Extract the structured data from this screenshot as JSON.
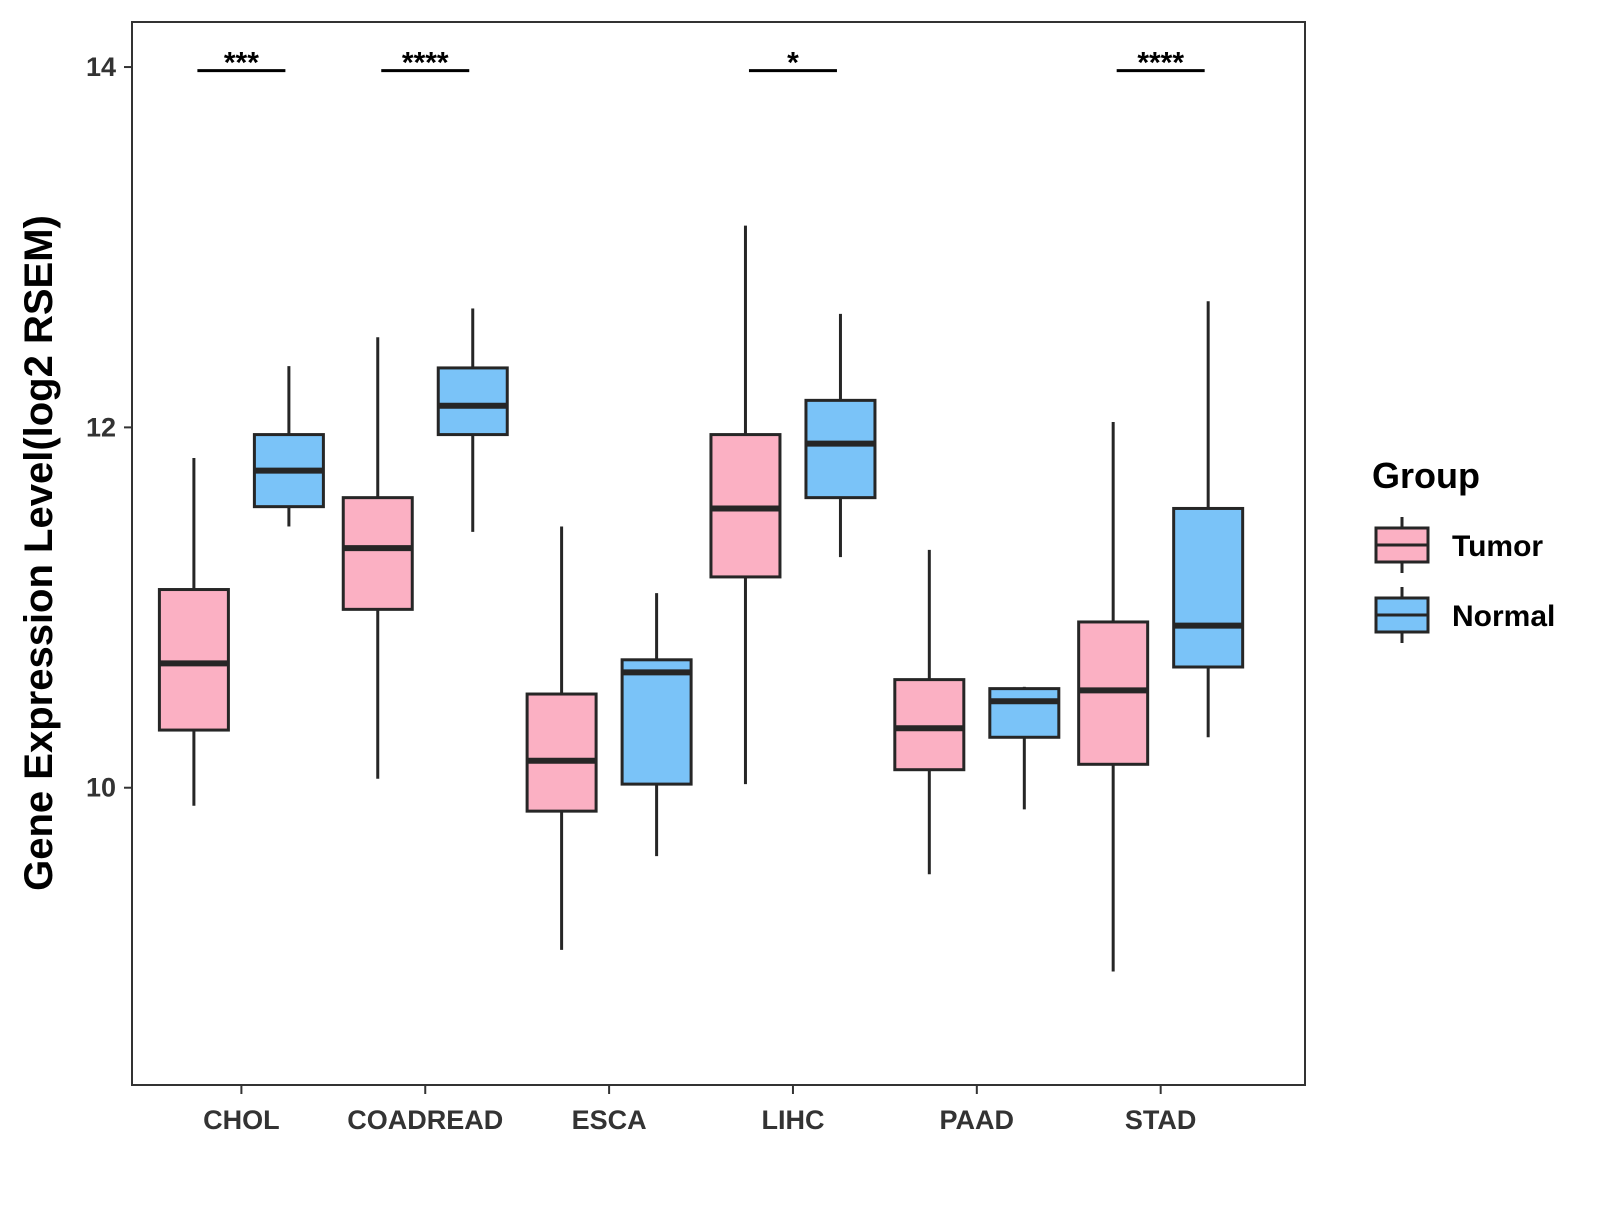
{
  "chart_data": {
    "type": "boxplot",
    "title": "",
    "xlabel": "",
    "ylabel": "Gene Expression Level(log2 RSEM)",
    "ylim": [
      8.35,
      14.25
    ],
    "yticks": [
      10,
      12,
      14
    ],
    "grid": false,
    "legend": {
      "title": "Group",
      "position": "right"
    },
    "categories": [
      "CHOL",
      "COADREAD",
      "ESCA",
      "LIHC",
      "PAAD",
      "STAD"
    ],
    "series": [
      {
        "name": "Tumor",
        "color": "#FBB0C3",
        "boxes": [
          {
            "whisker_low": 9.9,
            "q1": 10.32,
            "median": 10.69,
            "q3": 11.1,
            "whisker_high": 11.83
          },
          {
            "whisker_low": 10.05,
            "q1": 10.99,
            "median": 11.33,
            "q3": 11.61,
            "whisker_high": 12.5
          },
          {
            "whisker_low": 9.1,
            "q1": 9.87,
            "median": 10.15,
            "q3": 10.52,
            "whisker_high": 11.45
          },
          {
            "whisker_low": 10.02,
            "q1": 11.17,
            "median": 11.55,
            "q3": 11.96,
            "whisker_high": 13.12
          },
          {
            "whisker_low": 9.52,
            "q1": 10.1,
            "median": 10.33,
            "q3": 10.6,
            "whisker_high": 11.32
          },
          {
            "whisker_low": 8.98,
            "q1": 10.13,
            "median": 10.54,
            "q3": 10.92,
            "whisker_high": 12.03
          }
        ]
      },
      {
        "name": "Normal",
        "color": "#7AC3F8",
        "boxes": [
          {
            "whisker_low": 11.45,
            "q1": 11.56,
            "median": 11.76,
            "q3": 11.96,
            "whisker_high": 12.34
          },
          {
            "whisker_low": 11.42,
            "q1": 11.96,
            "median": 12.12,
            "q3": 12.33,
            "whisker_high": 12.66
          },
          {
            "whisker_low": 9.62,
            "q1": 10.02,
            "median": 10.64,
            "q3": 10.71,
            "whisker_high": 11.08
          },
          {
            "whisker_low": 11.28,
            "q1": 11.61,
            "median": 11.91,
            "q3": 12.15,
            "whisker_high": 12.63
          },
          {
            "whisker_low": 9.88,
            "q1": 10.28,
            "median": 10.48,
            "q3": 10.55,
            "whisker_high": 10.56
          },
          {
            "whisker_low": 10.28,
            "q1": 10.67,
            "median": 10.9,
            "q3": 11.55,
            "whisker_high": 12.7
          }
        ]
      }
    ],
    "annotations": [
      {
        "category": "CHOL",
        "label": "***",
        "y": 13.98
      },
      {
        "category": "COADREAD",
        "label": "****",
        "y": 13.98
      },
      {
        "category": "LIHC",
        "label": "*",
        "y": 13.98
      },
      {
        "category": "STAD",
        "label": "****",
        "y": 13.98
      }
    ],
    "colors": {
      "stroke": "#262626",
      "axis": "#333333"
    }
  }
}
